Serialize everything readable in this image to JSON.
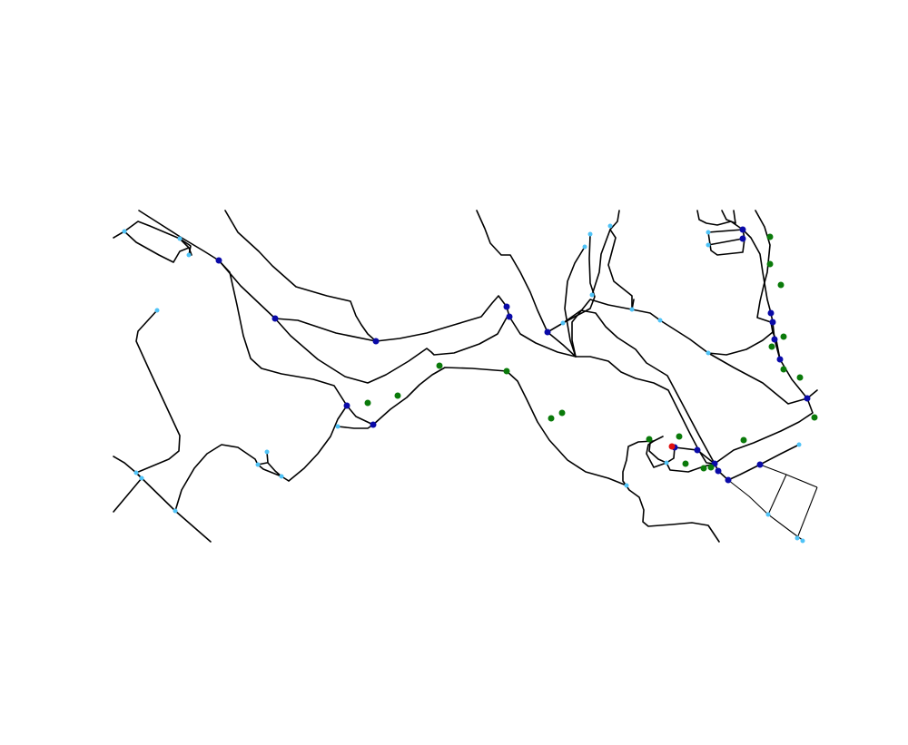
{
  "map": {
    "kind": "street-network-plot",
    "colors": {
      "background": "#ffffff",
      "road": "#000000",
      "endpoint_node": "#4fc3f7",
      "intersection_node": "#0a0aa8",
      "poi": "#0a7a0a",
      "highlight": "#e01010"
    },
    "legend": null,
    "labels": []
  }
}
